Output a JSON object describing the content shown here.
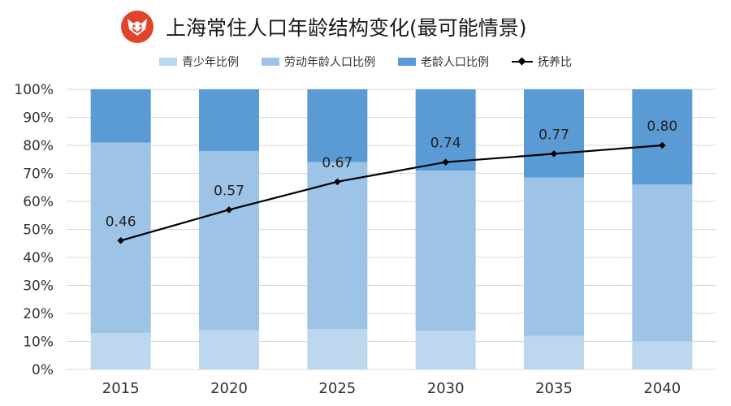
{
  "title": "上海常住人口年龄结构变化(最可能情景)",
  "logo_icon": "fox-logo",
  "colors": {
    "youth": "#bdd7ee",
    "working": "#9dc3e6",
    "elderly": "#5b9bd5",
    "line": "#000000",
    "grid": "#d9d9d9",
    "logo": "#e0452b"
  },
  "legend": {
    "youth": "青少年比例",
    "working": "劳动年龄人口比例",
    "elderly": "老龄人口比例",
    "dependency": "抚养比"
  },
  "chart_data": {
    "type": "bar",
    "stacked": true,
    "categories": [
      "2015",
      "2020",
      "2025",
      "2030",
      "2035",
      "2040"
    ],
    "series": [
      {
        "name": "青少年比例",
        "values": [
          13,
          14,
          14.5,
          13.8,
          12,
          10
        ]
      },
      {
        "name": "劳动年龄人口比例",
        "values": [
          68,
          64,
          59.5,
          57.2,
          56.5,
          56
        ]
      },
      {
        "name": "老龄人口比例",
        "values": [
          19,
          22,
          26,
          29,
          31.5,
          34
        ]
      }
    ],
    "line_series": {
      "name": "抚养比",
      "values": [
        0.46,
        0.57,
        0.67,
        0.74,
        0.77,
        0.8
      ],
      "labels": [
        "0.46",
        "0.57",
        "0.67",
        "0.74",
        "0.77",
        "0.80"
      ]
    },
    "y_ticks": [
      "0%",
      "10%",
      "20%",
      "30%",
      "40%",
      "50%",
      "60%",
      "70%",
      "80%",
      "90%",
      "100%"
    ],
    "ylim": [
      0,
      100
    ],
    "legend_position": "top"
  }
}
